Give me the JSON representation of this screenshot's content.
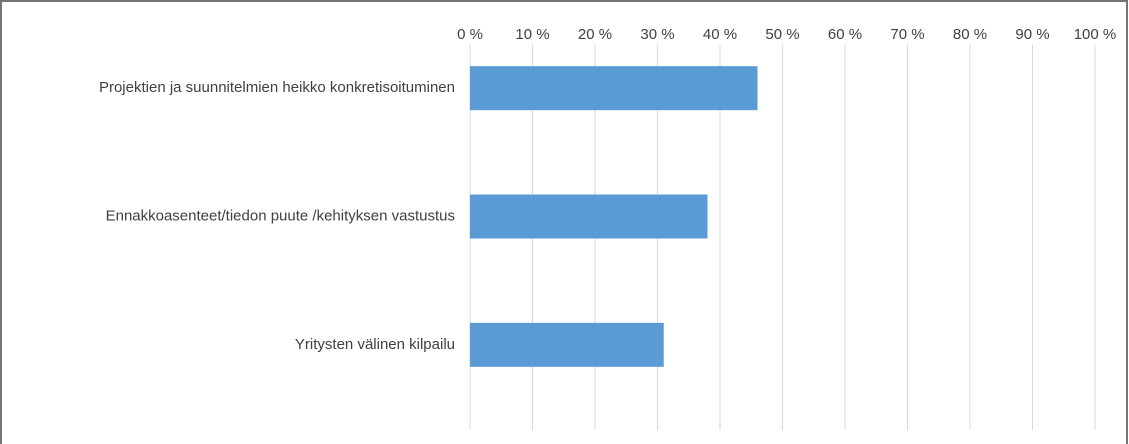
{
  "chart_data": {
    "type": "hbar",
    "categories": [
      "Projektien ja suunnitelmien heikko konkretisoituminen",
      "Ennakkoasenteet/tiedon puute /kehityksen vastustus",
      "Yritysten välinen kilpailu"
    ],
    "values": [
      46,
      38,
      31
    ],
    "color": "#5b9bd5",
    "xlim": [
      0,
      100
    ],
    "xticks": [
      {
        "value": 0,
        "label": "0 %"
      },
      {
        "value": 10,
        "label": "10 %"
      },
      {
        "value": 20,
        "label": "20 %"
      },
      {
        "value": 30,
        "label": "30 %"
      },
      {
        "value": 40,
        "label": "40 %"
      },
      {
        "value": 50,
        "label": "50 %"
      },
      {
        "value": 60,
        "label": "60 %"
      },
      {
        "value": 70,
        "label": "70 %"
      },
      {
        "value": 80,
        "label": "80 %"
      },
      {
        "value": 90,
        "label": "90 %"
      },
      {
        "value": 100,
        "label": "100 %"
      }
    ],
    "grid": true
  }
}
